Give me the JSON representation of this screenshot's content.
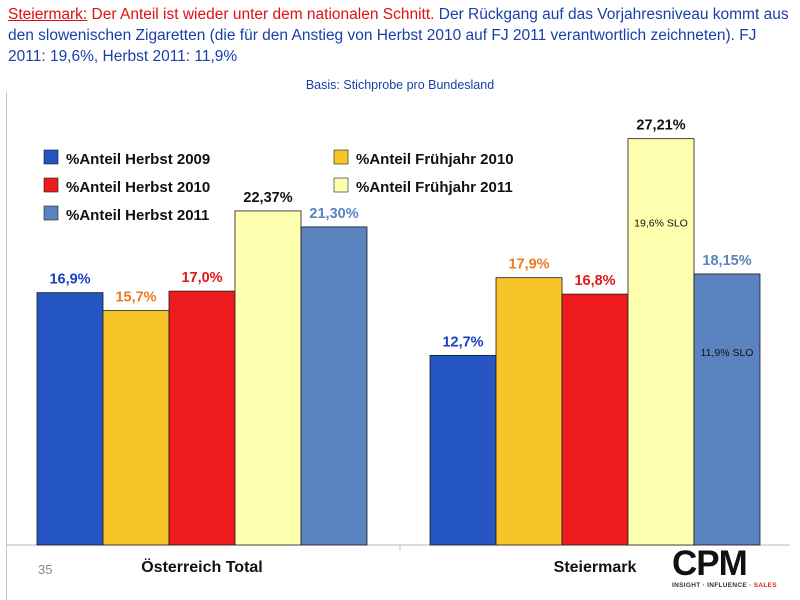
{
  "header": {
    "highlight_label": "Steiermark:",
    "highlight_text": " Der Anteil ist wieder unter dem nationalen Schnitt.",
    "body_text": " Der Rückgang auf das Vorjahresniveau kommt aus den slowenischen Zigaretten (die für den Anstieg von Herbst 2010 auf FJ 2011 verantwortlich zeichneten). FJ 2011: 19,6%, Herbst 2011: 11,9%"
  },
  "basis": "Basis: Stichprobe pro Bundesland",
  "slide_number": "35",
  "logo": {
    "name": "CPM",
    "tagline_prefix": "INSIGHT · INFLUENCE · ",
    "tagline_accent": "SALES"
  },
  "chart_data": {
    "type": "bar",
    "categories": [
      "Österreich Total",
      "Steiermark"
    ],
    "series": [
      {
        "name": "%Anteil Herbst 2009",
        "values": [
          16.9,
          12.7
        ],
        "labels": [
          "16,9%",
          "12,7%"
        ],
        "color": "#2455c3",
        "label_color": "#1c3ec0"
      },
      {
        "name": "%Anteil Frühjahr 2010",
        "values": [
          15.7,
          17.9
        ],
        "labels": [
          "15,7%",
          "17,9%"
        ],
        "color": "#f7c52a",
        "label_color": "#f07a1e"
      },
      {
        "name": "%Anteil Herbst 2010",
        "values": [
          17.0,
          16.8
        ],
        "labels": [
          "17,0%",
          "16,8%"
        ],
        "color": "#ee1c1c",
        "label_color": "#e01818"
      },
      {
        "name": "%Anteil Frühjahr 2011",
        "values": [
          22.37,
          27.21
        ],
        "labels": [
          "22,37%",
          "27,21%"
        ],
        "color": "#ffffb0",
        "label_color": "#111111"
      },
      {
        "name": "%Anteil Herbst 2011",
        "values": [
          21.3,
          18.15
        ],
        "labels": [
          "21,30%",
          "18,15%"
        ],
        "color": "#5a83c0",
        "label_color": "#5a83c0"
      }
    ],
    "annotations": [
      {
        "category": "Steiermark",
        "series": "%Anteil Frühjahr 2011",
        "text": "19,6% SLO"
      },
      {
        "category": "Steiermark",
        "series": "%Anteil Herbst 2011",
        "text": "11,9% SLO"
      }
    ],
    "ylim": [
      0,
      30
    ],
    "legend_position": "top-left",
    "grid": false
  }
}
